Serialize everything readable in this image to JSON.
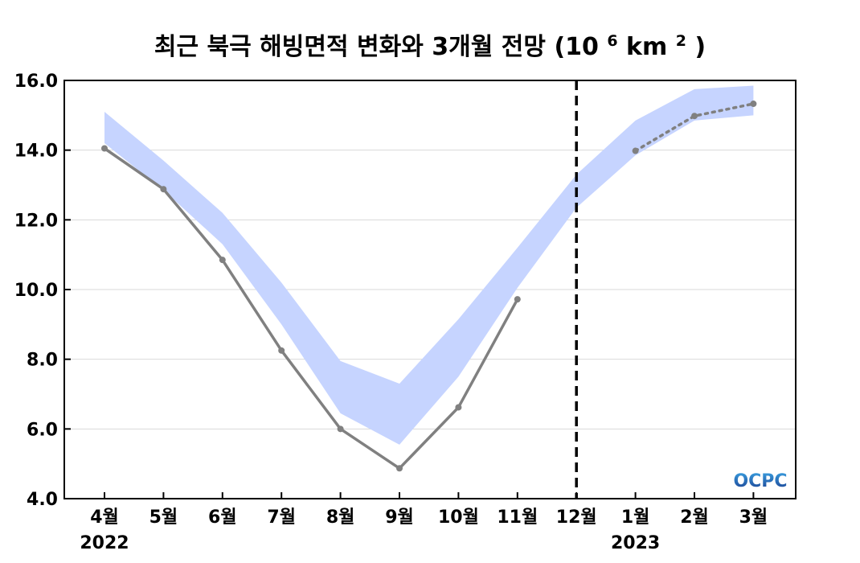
{
  "chart_data": {
    "type": "line",
    "title": "최근 북극 해빙면적 변화와 3개월 전망",
    "title_unit": "(10",
    "title_unit_exp": "6",
    "title_unit_km": "km",
    "title_unit_sq": "2",
    "title_unit_close": ")",
    "categories": [
      "4월",
      "5월",
      "6월",
      "7월",
      "8월",
      "9월",
      "10월",
      "11월",
      "12월",
      "1월",
      "2월",
      "3월"
    ],
    "year_labels": [
      {
        "category": "4월",
        "label": "2022"
      },
      {
        "category": "1월",
        "label": "2023"
      }
    ],
    "ylim": [
      4.0,
      16.0
    ],
    "yticks": [
      "4.0",
      "6.0",
      "8.0",
      "10.0",
      "12.0",
      "14.0",
      "16.0"
    ],
    "grid": true,
    "forecast_divider_category": "12월",
    "series": [
      {
        "style": "observed-solid",
        "color": "#808080",
        "points": [
          {
            "x": "4월",
            "y": 14.05
          },
          {
            "x": "5월",
            "y": 12.88
          },
          {
            "x": "6월",
            "y": 10.85
          },
          {
            "x": "7월",
            "y": 8.25
          },
          {
            "x": "8월",
            "y": 6.0
          },
          {
            "x": "9월",
            "y": 4.87
          },
          {
            "x": "10월",
            "y": 6.62
          },
          {
            "x": "11월",
            "y": 9.72
          }
        ]
      },
      {
        "style": "forecast-dotted",
        "color": "#808080",
        "points": [
          {
            "x": "1월",
            "y": 13.98
          },
          {
            "x": "2월",
            "y": 14.98
          },
          {
            "x": "3월",
            "y": 15.33
          }
        ]
      }
    ],
    "band": {
      "color": "#c6d4ff",
      "points": [
        {
          "x": "4월",
          "low": 14.2,
          "high": 15.1
        },
        {
          "x": "5월",
          "low": 12.85,
          "high": 13.7
        },
        {
          "x": "6월",
          "low": 11.3,
          "high": 12.2
        },
        {
          "x": "7월",
          "low": 9.0,
          "high": 10.2
        },
        {
          "x": "8월",
          "low": 6.45,
          "high": 7.95
        },
        {
          "x": "9월",
          "low": 5.55,
          "high": 7.3
        },
        {
          "x": "10월",
          "low": 7.5,
          "high": 9.15
        },
        {
          "x": "11월",
          "low": 10.05,
          "high": 11.2
        },
        {
          "x": "12월",
          "low": 12.35,
          "high": 13.3
        },
        {
          "x": "1월",
          "low": 13.85,
          "high": 14.85
        },
        {
          "x": "2월",
          "low": 14.85,
          "high": 15.75
        },
        {
          "x": "3월",
          "low": 15.0,
          "high": 15.85
        }
      ]
    },
    "logo": {
      "text": "OCPC",
      "colors": [
        "#1a3d8f",
        "#3aa0e0"
      ]
    }
  }
}
